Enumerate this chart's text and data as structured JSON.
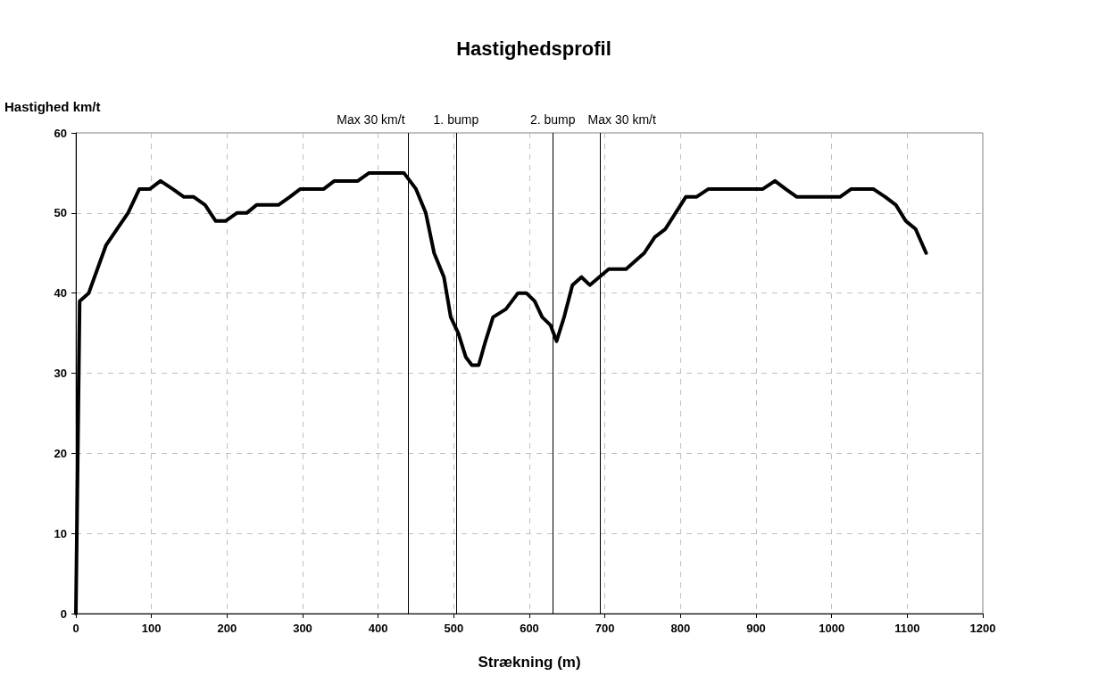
{
  "chart_data": {
    "type": "line",
    "title": "Hastighedsprofil",
    "xlabel": "Strækning (m)",
    "ylabel": "Hastighed km/t",
    "x": [
      0,
      5,
      17,
      40,
      69,
      84,
      98,
      112,
      128,
      143,
      156,
      171,
      185,
      198,
      213,
      226,
      239,
      268,
      283,
      297,
      328,
      342,
      373,
      388,
      434,
      450,
      463,
      474,
      487,
      496,
      506,
      516,
      524,
      533,
      542,
      552,
      569,
      585,
      596,
      607,
      617,
      628,
      636,
      646,
      657,
      669,
      680,
      705,
      728,
      752,
      766,
      780,
      807,
      821,
      837,
      909,
      925,
      939,
      954,
      1011,
      1026,
      1055,
      1071,
      1085,
      1098,
      1111,
      1125
    ],
    "series": [
      {
        "color": "#000000",
        "values": [
          0,
          39,
          40,
          46,
          50,
          53,
          53,
          54,
          53,
          52,
          52,
          51,
          49,
          49,
          50,
          50,
          51,
          51,
          52,
          53,
          53,
          54,
          54,
          55,
          55,
          53,
          50,
          45,
          42,
          37,
          35,
          32,
          31,
          31,
          34,
          37,
          38,
          40,
          40,
          39,
          37,
          36,
          34,
          37,
          41,
          42,
          41,
          43,
          43,
          45,
          47,
          48,
          52,
          52,
          53,
          53,
          54,
          53,
          52,
          52,
          53,
          53,
          52,
          51,
          49,
          48,
          45
        ]
      }
    ],
    "xlim": [
      0,
      1200
    ],
    "xticks": [
      0,
      100,
      200,
      300,
      400,
      500,
      600,
      700,
      800,
      900,
      1000,
      1100,
      1200
    ],
    "ylim": [
      0,
      60
    ],
    "yticks": [
      0,
      10,
      20,
      30,
      40,
      50,
      60
    ],
    "ref_lines": [
      {
        "axis": "x",
        "value": 440,
        "label": "Max 30 km/t",
        "color": "#000000"
      },
      {
        "axis": "x",
        "value": 503,
        "label": "1. bump",
        "color": "#000000"
      },
      {
        "axis": "x",
        "value": 631,
        "label": "2. bump",
        "color": "#000000"
      },
      {
        "axis": "x",
        "value": 694,
        "label": "Max 30 km/t",
        "color": "#000000"
      }
    ],
    "grid": true,
    "marker": "none",
    "line_style": "solid"
  }
}
